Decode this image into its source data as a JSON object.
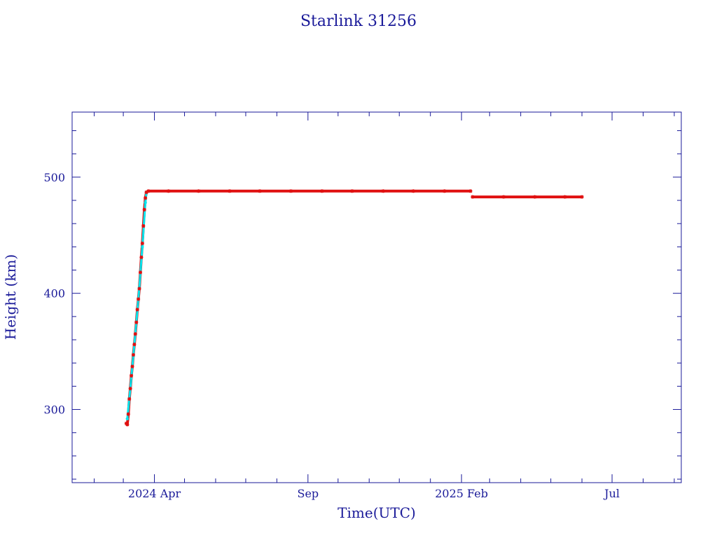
{
  "chart_data": {
    "type": "scatter",
    "title": "Starlink 31256",
    "xlabel": "Time(UTC)",
    "ylabel": "Height (km)",
    "xlim": [
      "2024-01-10",
      "2025-09-08"
    ],
    "ylim": [
      237,
      556
    ],
    "x_ticks": [
      {
        "date": "2024-04-01",
        "label": "2024 Apr"
      },
      {
        "date": "2024-09-01",
        "label": "Sep"
      },
      {
        "date": "2025-02-01",
        "label": "2025 Feb"
      },
      {
        "date": "2025-07-01",
        "label": "Jul"
      }
    ],
    "y_ticks": [
      300,
      400,
      500
    ],
    "grid": false,
    "legend": "none",
    "colors": {
      "axes": "#1a1a99",
      "observed": "#e01010",
      "fit": "#00e5ee"
    },
    "series": [
      {
        "kind": "observed",
        "points": [
          [
            "2024-03-04",
            288
          ],
          [
            "2024-03-05",
            287
          ],
          [
            "2024-03-06",
            296
          ],
          [
            "2024-03-07",
            309
          ],
          [
            "2024-03-08",
            318
          ],
          [
            "2024-03-09",
            329
          ],
          [
            "2024-03-10",
            337
          ],
          [
            "2024-03-11",
            347
          ],
          [
            "2024-03-12",
            356
          ],
          [
            "2024-03-13",
            365
          ],
          [
            "2024-03-14",
            375
          ],
          [
            "2024-03-15",
            386
          ],
          [
            "2024-03-16",
            395
          ],
          [
            "2024-03-17",
            404
          ],
          [
            "2024-03-18",
            418
          ],
          [
            "2024-03-19",
            431
          ],
          [
            "2024-03-20",
            443
          ],
          [
            "2024-03-21",
            458
          ],
          [
            "2024-03-22",
            472
          ],
          [
            "2024-03-23",
            482
          ],
          [
            "2024-03-24",
            487
          ],
          [
            "2024-03-26",
            488
          ],
          [
            "2024-04-15",
            488
          ],
          [
            "2024-05-15",
            488
          ],
          [
            "2024-06-15",
            488
          ],
          [
            "2024-07-15",
            488
          ],
          [
            "2024-08-15",
            488
          ],
          [
            "2024-09-15",
            488
          ],
          [
            "2024-10-15",
            488
          ],
          [
            "2024-11-15",
            488
          ],
          [
            "2024-12-15",
            488
          ],
          [
            "2025-01-15",
            488
          ],
          [
            "2025-02-10",
            488
          ],
          [
            "2025-02-12",
            483
          ],
          [
            "2025-03-15",
            483
          ],
          [
            "2025-04-15",
            483
          ],
          [
            "2025-05-15",
            483
          ],
          [
            "2025-06-01",
            483
          ]
        ]
      },
      {
        "kind": "fit",
        "points": [
          [
            "2024-03-05",
            292
          ],
          [
            "2024-03-08",
            318
          ],
          [
            "2024-03-11",
            346
          ],
          [
            "2024-03-14",
            375
          ],
          [
            "2024-03-17",
            405
          ],
          [
            "2024-03-20",
            440
          ],
          [
            "2024-03-23",
            478
          ],
          [
            "2024-03-24",
            487
          ]
        ]
      }
    ]
  }
}
